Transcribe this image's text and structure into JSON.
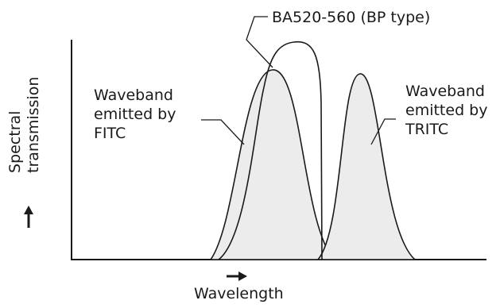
{
  "diagram": {
    "y_axis_label_line1": "Spectral",
    "y_axis_label_line2": "transmission",
    "x_axis_label": "Wavelength",
    "filter_label": "BA520-560 (BP type)",
    "fitc_label_line1": "Waveband",
    "fitc_label_line2": "emitted by",
    "fitc_label_line3": "FITC",
    "tritc_label_line1": "Waveband",
    "tritc_label_line2": "emitted by",
    "tritc_label_line3": "TRITC"
  },
  "colors": {
    "stroke": "#1a1a1a",
    "fill": "#ececec"
  }
}
